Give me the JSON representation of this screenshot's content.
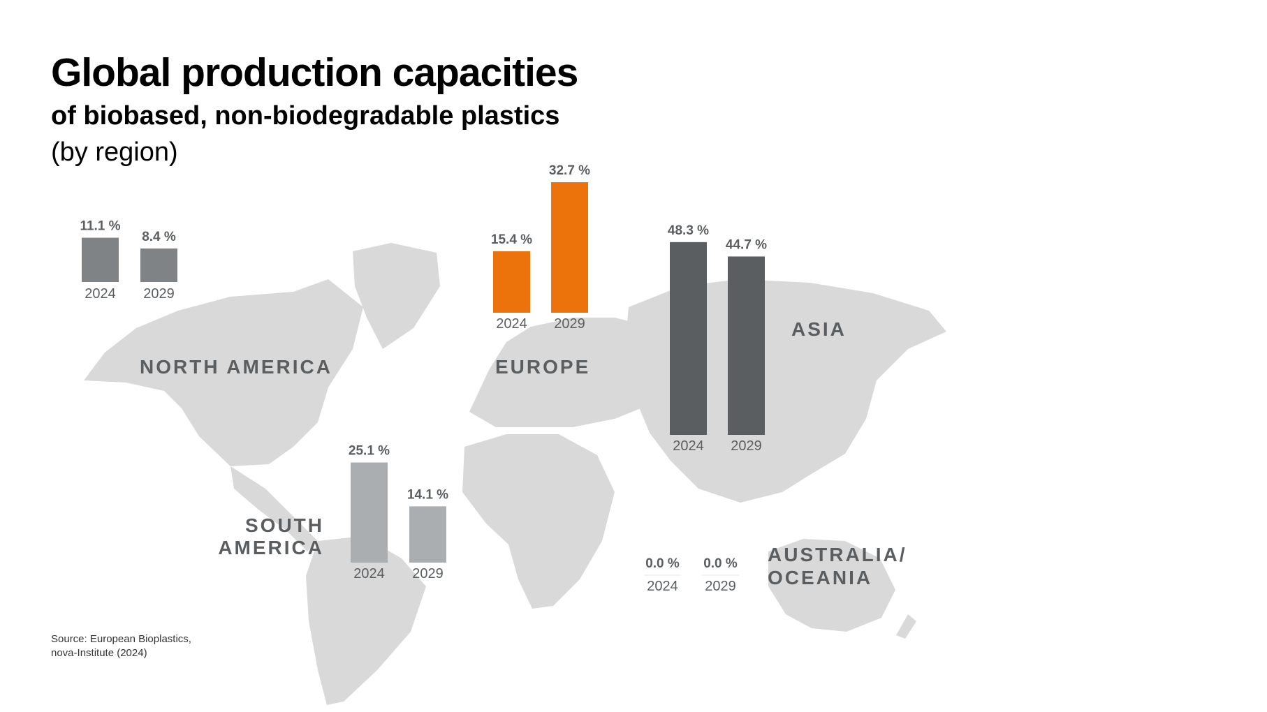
{
  "title": "Global production capacities",
  "subtitle": "of biobased, non-biodegradable plastics",
  "note": "(by region)",
  "source": [
    "Source: European Bioplastics,",
    "nova-Institute (2024)"
  ],
  "colors": {
    "map": "#d9d9d9",
    "north_america": "#808385",
    "south_america": "#abaeb0",
    "europe": "#ec730c",
    "asia": "#5a5e60",
    "australia_oceania": "#c8c8c8",
    "region_label": "#5b5e60",
    "value_label": "#5b5e60",
    "year_label": "#5b5e60"
  },
  "chart_data": {
    "type": "bar",
    "unit": "%",
    "categories": [
      "2024",
      "2029"
    ],
    "regions": [
      {
        "key": "north_america",
        "name": "NORTH AMERICA",
        "values": [
          11.1,
          8.4
        ],
        "value_labels": [
          "11.1 %",
          "8.4 %"
        ]
      },
      {
        "key": "europe",
        "name": "EUROPE",
        "values": [
          15.4,
          32.7
        ],
        "value_labels": [
          "15.4 %",
          "32.7 %"
        ]
      },
      {
        "key": "asia",
        "name": "ASIA",
        "values": [
          48.3,
          44.7
        ],
        "value_labels": [
          "48.3 %",
          "44.7 %"
        ]
      },
      {
        "key": "south_america",
        "name": "SOUTH AMERICA",
        "values": [
          25.1,
          14.1
        ],
        "value_labels": [
          "25.1 %",
          "14.1 %"
        ]
      },
      {
        "key": "australia_oceania",
        "name": "AUSTRALIA/ OCEANIA",
        "values": [
          0.0,
          0.0
        ],
        "value_labels": [
          "0.0 %",
          "0.0 %"
        ]
      }
    ]
  }
}
